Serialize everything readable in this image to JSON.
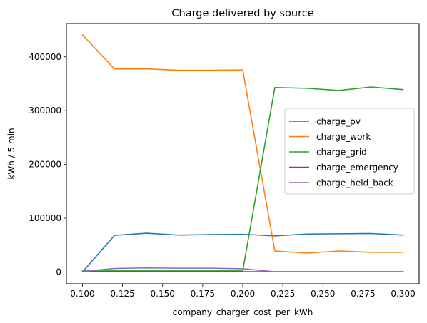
{
  "chart_data": {
    "type": "line",
    "title": "Charge delivered by source",
    "xlabel": "company_charger_cost_per_kWh",
    "ylabel": "kWh / 5 min",
    "x": [
      0.1,
      0.12,
      0.14,
      0.16,
      0.18,
      0.2,
      0.22,
      0.24,
      0.26,
      0.28,
      0.3
    ],
    "xlim": [
      0.09,
      0.31
    ],
    "ylim": [
      -22000,
      462000
    ],
    "x_ticks": [
      0.1,
      0.125,
      0.15,
      0.175,
      0.2,
      0.225,
      0.25,
      0.275,
      0.3
    ],
    "x_tick_labels": [
      "0.100",
      "0.125",
      "0.150",
      "0.175",
      "0.200",
      "0.225",
      "0.250",
      "0.275",
      "0.300"
    ],
    "y_ticks": [
      0,
      100000,
      200000,
      300000,
      400000
    ],
    "y_tick_labels": [
      "0",
      "100000",
      "200000",
      "300000",
      "400000"
    ],
    "grid": false,
    "legend_position": "center-right",
    "series": [
      {
        "name": "charge_pv",
        "color": "#1f77b4",
        "values": [
          0,
          68000,
          72000,
          68500,
          69500,
          70000,
          67000,
          70500,
          71000,
          71500,
          68500
        ]
      },
      {
        "name": "charge_work",
        "color": "#ff7f0e",
        "values": [
          441000,
          377500,
          377500,
          375000,
          375000,
          375500,
          39000,
          35000,
          39000,
          36500,
          36500
        ]
      },
      {
        "name": "charge_grid",
        "color": "#2ca02c",
        "values": [
          2000,
          2000,
          2000,
          2000,
          2000,
          2000,
          343000,
          341500,
          337500,
          344000,
          339000
        ]
      },
      {
        "name": "charge_emergency",
        "color": "#d62728",
        "values": [
          500,
          500,
          500,
          500,
          500,
          500,
          500,
          500,
          500,
          500,
          500
        ]
      },
      {
        "name": "charge_held_back",
        "color": "#9467bd",
        "values": [
          1000,
          6500,
          7500,
          7000,
          7000,
          6000,
          500,
          500,
          500,
          500,
          500
        ]
      }
    ]
  }
}
